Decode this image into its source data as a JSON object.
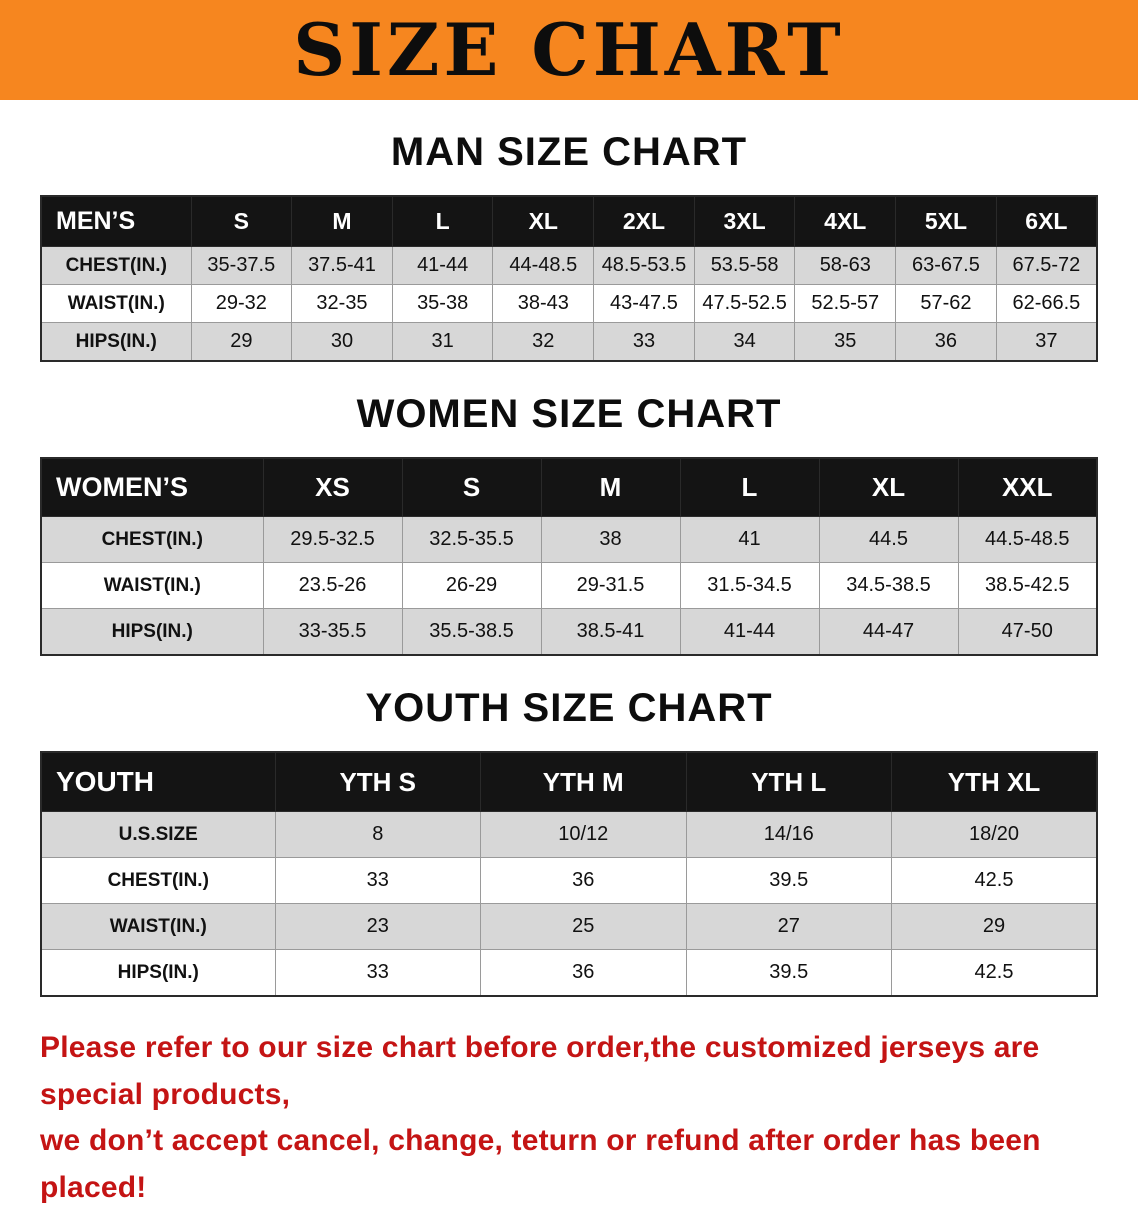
{
  "banner": {
    "title": "SIZE CHART"
  },
  "man": {
    "heading": "MAN SIZE CHART",
    "table": {
      "header": [
        "MEN’S",
        "S",
        "M",
        "L",
        "XL",
        "2XL",
        "3XL",
        "4XL",
        "5XL",
        "6XL"
      ],
      "rows": [
        [
          "CHEST(IN.)",
          "35-37.5",
          "37.5-41",
          "41-44",
          "44-48.5",
          "48.5-53.5",
          "53.5-58",
          "58-63",
          "63-67.5",
          "67.5-72"
        ],
        [
          "WAIST(IN.)",
          "29-32",
          "32-35",
          "35-38",
          "38-43",
          "43-47.5",
          "47.5-52.5",
          "52.5-57",
          "57-62",
          "62-66.5"
        ],
        [
          "HIPS(IN.)",
          "29",
          "30",
          "31",
          "32",
          "33",
          "34",
          "35",
          "36",
          "37"
        ]
      ]
    }
  },
  "women": {
    "heading": "WOMEN SIZE CHART",
    "table": {
      "header": [
        "WOMEN’S",
        "XS",
        "S",
        "M",
        "L",
        "XL",
        "XXL"
      ],
      "rows": [
        [
          "CHEST(IN.)",
          "29.5-32.5",
          "32.5-35.5",
          "38",
          "41",
          "44.5",
          "44.5-48.5"
        ],
        [
          "WAIST(IN.)",
          "23.5-26",
          "26-29",
          "29-31.5",
          "31.5-34.5",
          "34.5-38.5",
          "38.5-42.5"
        ],
        [
          "HIPS(IN.)",
          "33-35.5",
          "35.5-38.5",
          "38.5-41",
          "41-44",
          "44-47",
          "47-50"
        ]
      ]
    }
  },
  "youth": {
    "heading": "YOUTH SIZE CHART",
    "table": {
      "header": [
        "YOUTH",
        "YTH S",
        "YTH M",
        "YTH L",
        "YTH XL"
      ],
      "rows": [
        [
          "U.S.SIZE",
          "8",
          "10/12",
          "14/16",
          "18/20"
        ],
        [
          "CHEST(IN.)",
          "33",
          "36",
          "39.5",
          "42.5"
        ],
        [
          "WAIST(IN.)",
          "23",
          "25",
          "27",
          "29"
        ],
        [
          "HIPS(IN.)",
          "33",
          "36",
          "39.5",
          "42.5"
        ]
      ]
    }
  },
  "footer": {
    "line1": "Please refer to our size chart before order,the customized jerseys are special products,",
    "line2": "we don’t accept cancel, change, teturn or refund after order has been placed!"
  },
  "colors": {
    "banner_bg": "#f6861f",
    "header_bg": "#141414",
    "row_alt": "#d7d7d7",
    "footer_text": "#c41414"
  }
}
